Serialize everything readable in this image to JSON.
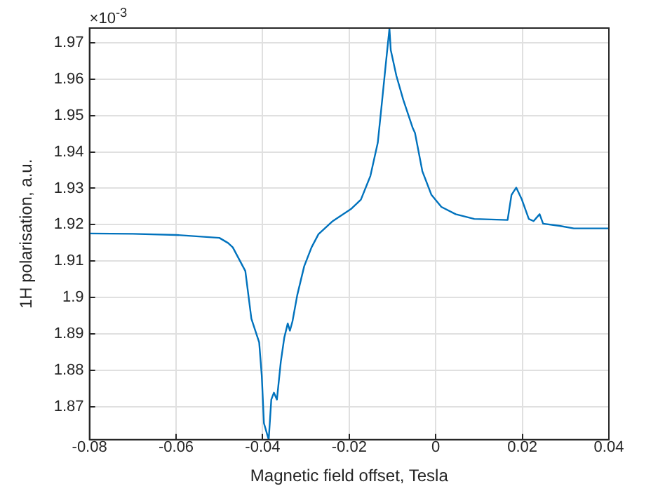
{
  "chart_data": {
    "type": "line",
    "xlabel": "Magnetic field offset, Tesla",
    "ylabel": "1H polarisation, a.u.",
    "annotations": [
      "×10$^{-3}$"
    ],
    "xlim": [
      -0.08,
      0.04
    ],
    "xticks": [
      -0.08,
      -0.06,
      -0.04,
      -0.02,
      0,
      0.02,
      0.04
    ],
    "ylim": [
      1.861,
      1.974
    ],
    "yticks": [
      1.87,
      1.88,
      1.89,
      1.9,
      1.91,
      1.92,
      1.93,
      1.94,
      1.95,
      1.96,
      1.97
    ],
    "grid": true,
    "marker": "none",
    "line_style": "solid",
    "series": [
      {
        "color": "#0072bd",
        "x": [
          -0.08,
          -0.07,
          -0.06,
          -0.05,
          -0.048,
          -0.0469,
          -0.044,
          -0.0426,
          -0.0408,
          -0.0402,
          -0.0397,
          -0.0386,
          -0.038,
          -0.0374,
          -0.0367,
          -0.0358,
          -0.035,
          -0.0342,
          -0.0337,
          -0.0331,
          -0.032,
          -0.0304,
          -0.0287,
          -0.0271,
          -0.0238,
          -0.0196,
          -0.0173,
          -0.0151,
          -0.0134,
          -0.0126,
          -0.0116,
          -0.0107,
          -0.0104,
          -0.0091,
          -0.0075,
          -0.0053,
          -0.0048,
          -0.0031,
          -0.001,
          0.0013,
          0.0046,
          0.0089,
          0.0166,
          0.0175,
          0.0186,
          0.0199,
          0.0215,
          0.0226,
          0.024,
          0.0248,
          0.0286,
          0.0319,
          0.04
        ],
        "values": [
          1.9176,
          1.9175,
          1.9172,
          1.9164,
          1.915,
          1.9138,
          1.9073,
          1.8942,
          1.8877,
          1.8785,
          1.8655,
          1.861,
          1.872,
          1.8739,
          1.872,
          1.8824,
          1.889,
          1.8929,
          1.8909,
          1.8935,
          1.9007,
          1.9086,
          1.9138,
          1.9174,
          1.921,
          1.9243,
          1.9269,
          1.9334,
          1.9425,
          1.9517,
          1.9635,
          1.9739,
          1.968,
          1.9609,
          1.9543,
          1.9465,
          1.9452,
          1.9347,
          1.9282,
          1.9249,
          1.9229,
          1.9216,
          1.9213,
          1.9282,
          1.9302,
          1.9269,
          1.9216,
          1.921,
          1.9229,
          1.9203,
          1.9197,
          1.919,
          1.919
        ]
      }
    ]
  }
}
